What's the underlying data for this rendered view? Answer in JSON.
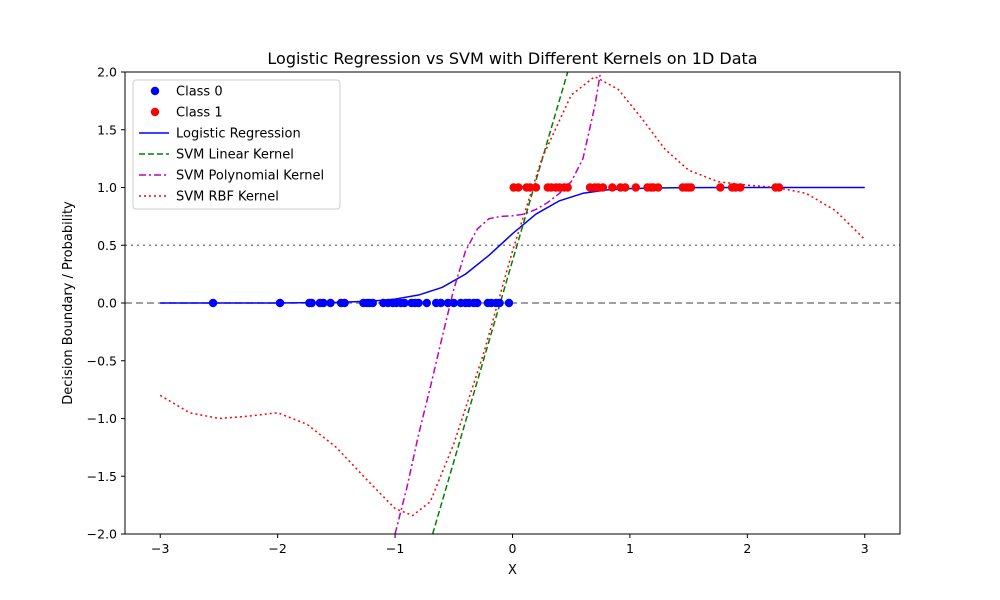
{
  "chart_data": {
    "type": "line",
    "title": "Logistic Regression vs SVM with Different Kernels on 1D Data",
    "xlabel": "X",
    "ylabel": "Decision Boundary / Probability",
    "xlim": [
      -3.3,
      3.3
    ],
    "ylim": [
      -2.0,
      2.0
    ],
    "xticks": [
      -3,
      -2,
      -1,
      0,
      1,
      2,
      3
    ],
    "xtick_labels": [
      "−3",
      "−2",
      "−1",
      "0",
      "1",
      "2",
      "3"
    ],
    "yticks": [
      -2.0,
      -1.5,
      -1.0,
      -0.5,
      0.0,
      0.5,
      1.0,
      1.5,
      2.0
    ],
    "ytick_labels": [
      "−2.0",
      "−1.5",
      "−1.0",
      "−0.5",
      "0.0",
      "0.5",
      "1.0",
      "1.5",
      "2.0"
    ],
    "grid": false,
    "legend_position": "top-left",
    "reference_lines": [
      {
        "y": 0.0,
        "style": "dashed",
        "color": "#808080"
      },
      {
        "y": 0.5,
        "style": "dotted",
        "color": "#808080"
      }
    ],
    "scatter": [
      {
        "name": "Class 0",
        "color": "#0000ff",
        "x": [
          -2.55,
          -1.98,
          -1.73,
          -1.71,
          -1.64,
          -1.61,
          -1.55,
          -1.46,
          -1.43,
          -1.27,
          -1.24,
          -1.22,
          -1.19,
          -1.1,
          -1.06,
          -1.02,
          -0.99,
          -0.95,
          -0.92,
          -0.86,
          -0.83,
          -0.8,
          -0.73,
          -0.65,
          -0.61,
          -0.55,
          -0.5,
          -0.44,
          -0.4,
          -0.37,
          -0.33,
          -0.3,
          -0.21,
          -0.18,
          -0.14,
          -0.11,
          -0.03
        ],
        "y": [
          0,
          0,
          0,
          0,
          0,
          0,
          0,
          0,
          0,
          0,
          0,
          0,
          0,
          0,
          0,
          0,
          0,
          0,
          0,
          0,
          0,
          0,
          0,
          0,
          0,
          0,
          0,
          0,
          0,
          0,
          0,
          0,
          0,
          0,
          0,
          0,
          0
        ]
      },
      {
        "name": "Class 1",
        "color": "#ff0000",
        "x": [
          0.01,
          0.05,
          0.12,
          0.15,
          0.2,
          0.3,
          0.33,
          0.37,
          0.4,
          0.44,
          0.47,
          0.66,
          0.7,
          0.73,
          0.77,
          0.85,
          0.92,
          0.96,
          1.05,
          1.15,
          1.18,
          1.2,
          1.24,
          1.45,
          1.48,
          1.5,
          1.52,
          1.77,
          1.87,
          1.9,
          1.94,
          2.24,
          2.27
        ],
        "y": [
          1,
          1,
          1,
          1,
          1,
          1,
          1,
          1,
          1,
          1,
          1,
          1,
          1,
          1,
          1,
          1,
          1,
          1,
          1,
          1,
          1,
          1,
          1,
          1,
          1,
          1,
          1,
          1,
          1,
          1,
          1,
          1,
          1
        ]
      }
    ],
    "series": [
      {
        "name": "Logistic Regression",
        "color": "#0000ff",
        "dash": "solid",
        "x": [
          -3.0,
          -2.5,
          -2.0,
          -1.5,
          -1.2,
          -1.0,
          -0.8,
          -0.6,
          -0.4,
          -0.2,
          0.0,
          0.2,
          0.4,
          0.6,
          0.8,
          1.0,
          1.2,
          1.5,
          2.0,
          2.5,
          3.0
        ],
        "y": [
          0.0,
          0.0,
          0.0,
          0.005,
          0.016,
          0.034,
          0.069,
          0.135,
          0.25,
          0.413,
          0.6,
          0.77,
          0.885,
          0.95,
          0.978,
          0.99,
          0.996,
          0.999,
          1.0,
          1.0,
          1.0
        ]
      },
      {
        "name": "SVM Linear Kernel",
        "color": "#008000",
        "dash": "dashed",
        "x": [
          -0.68,
          0.47
        ],
        "y": [
          -2.0,
          2.0
        ]
      },
      {
        "name": "SVM Polynomial Kernel",
        "color": "#bf00bf",
        "dash": "dashdot",
        "x": [
          -1.0,
          -0.9,
          -0.8,
          -0.7,
          -0.6,
          -0.5,
          -0.4,
          -0.3,
          -0.2,
          -0.1,
          0.0,
          0.1,
          0.2,
          0.3,
          0.4,
          0.5,
          0.6,
          0.7,
          0.75
        ],
        "y": [
          -2.0,
          -1.6,
          -1.14,
          -0.73,
          -0.3,
          0.12,
          0.45,
          0.64,
          0.73,
          0.75,
          0.755,
          0.77,
          0.81,
          0.87,
          0.95,
          1.05,
          1.25,
          1.7,
          2.0
        ]
      },
      {
        "name": "SVM RBF Kernel",
        "color": "#ff0000",
        "dash": "dotted",
        "x": [
          -3.0,
          -2.75,
          -2.5,
          -2.25,
          -2.0,
          -1.75,
          -1.5,
          -1.25,
          -1.0,
          -0.85,
          -0.7,
          -0.5,
          -0.25,
          0.0,
          0.25,
          0.5,
          0.7,
          0.9,
          1.1,
          1.3,
          1.5,
          1.75,
          2.0,
          2.25,
          2.5,
          2.75,
          3.0
        ],
        "y": [
          -0.8,
          -0.95,
          -1.0,
          -0.98,
          -0.95,
          -1.05,
          -1.25,
          -1.52,
          -1.78,
          -1.84,
          -1.72,
          -1.22,
          -0.45,
          0.45,
          1.25,
          1.8,
          1.96,
          1.85,
          1.6,
          1.33,
          1.15,
          1.05,
          1.02,
          1.0,
          0.95,
          0.8,
          0.55
        ]
      }
    ]
  },
  "legend": [
    {
      "label": "Class 0",
      "kind": "marker",
      "color": "#0000ff"
    },
    {
      "label": "Class 1",
      "kind": "marker",
      "color": "#ff0000"
    },
    {
      "label": "Logistic Regression",
      "kind": "line",
      "color": "#0000ff",
      "dash": "solid"
    },
    {
      "label": "SVM Linear Kernel",
      "kind": "line",
      "color": "#008000",
      "dash": "dashed"
    },
    {
      "label": "SVM Polynomial Kernel",
      "kind": "line",
      "color": "#bf00bf",
      "dash": "dashdot"
    },
    {
      "label": "SVM RBF Kernel",
      "kind": "line",
      "color": "#ff0000",
      "dash": "dotted"
    }
  ]
}
